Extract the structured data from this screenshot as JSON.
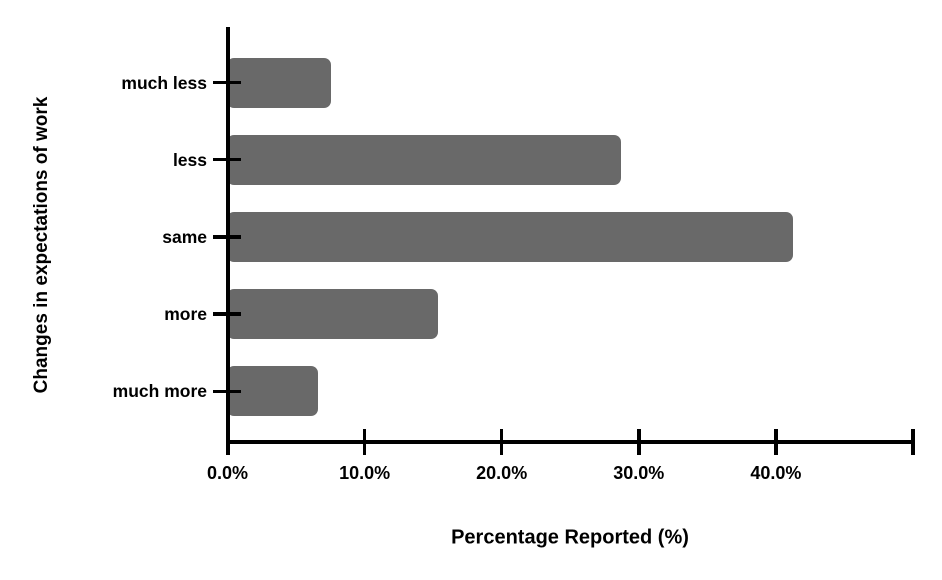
{
  "chart_data": {
    "type": "bar",
    "orientation": "horizontal",
    "title": "",
    "xlabel": "Percentage Reported (%)",
    "ylabel": "Changes in expectations of work",
    "categories": [
      "much less",
      "less",
      "same",
      "more",
      "much more"
    ],
    "values": [
      7.6,
      28.8,
      41.3,
      15.4,
      6.7
    ],
    "unit": "%",
    "xlim": [
      0,
      50
    ],
    "xticks": [
      {
        "value": 0,
        "label": "0.0%"
      },
      {
        "value": 10,
        "label": "10.0%"
      },
      {
        "value": 20,
        "label": "20.0%"
      },
      {
        "value": 30,
        "label": "30.0%"
      },
      {
        "value": 40,
        "label": "40.0%"
      },
      {
        "value": 50,
        "label": ""
      }
    ],
    "bar_color": "#696969",
    "axis_color": "#000000",
    "background": "#ffffff",
    "grid": false,
    "legend": false
  }
}
